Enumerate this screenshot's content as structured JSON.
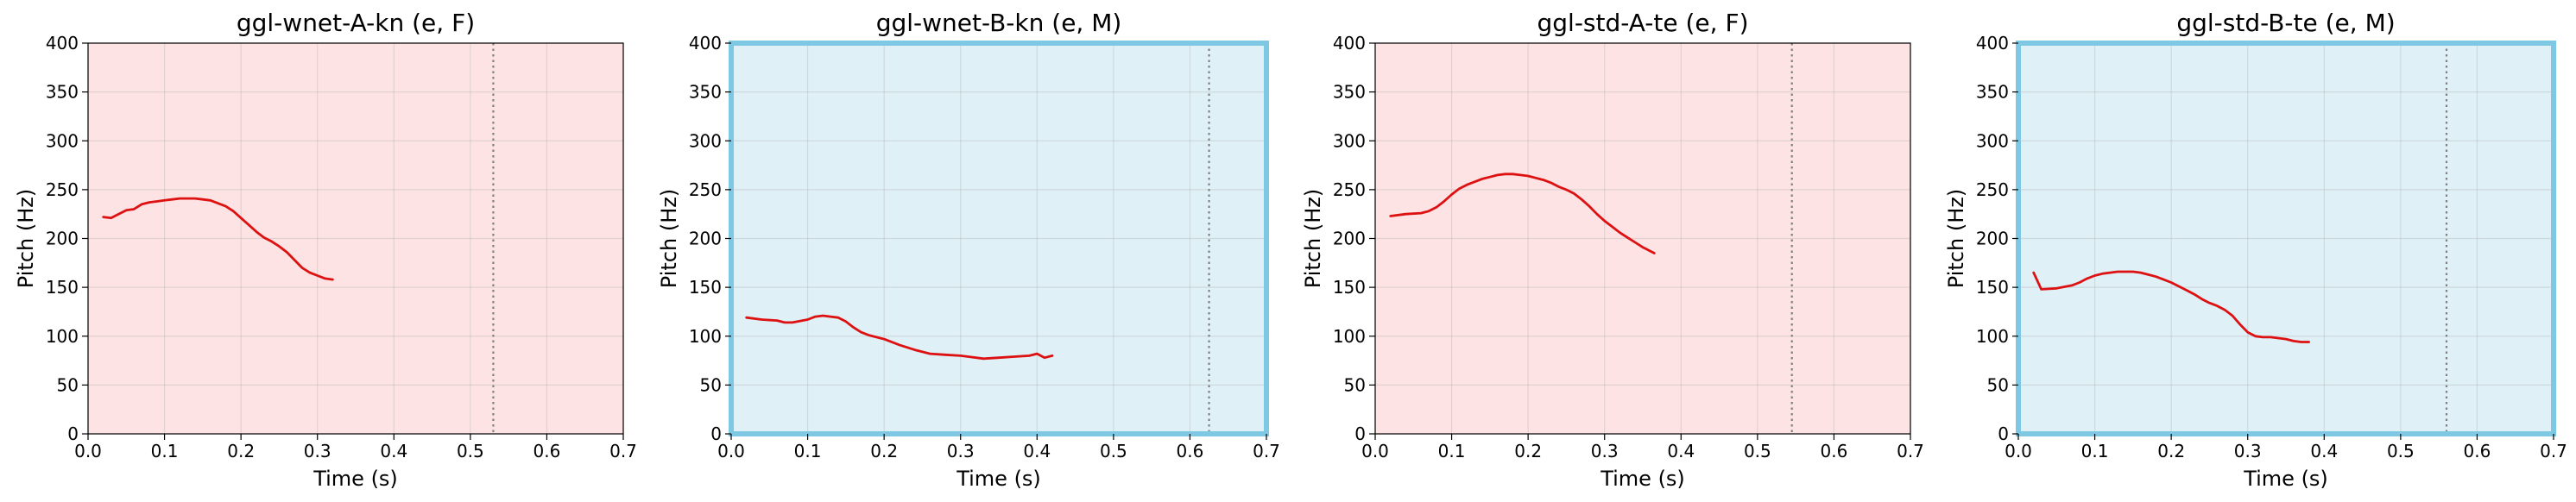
{
  "chart_data": [
    {
      "type": "line",
      "title": "ggl-wnet-A-kn (e, F)",
      "xlabel": "Time (s)",
      "ylabel": "Pitch (Hz)",
      "xlim": [
        0,
        0.7
      ],
      "ylim": [
        0,
        400
      ],
      "xticks": [
        "0.0",
        "0.1",
        "0.2",
        "0.3",
        "0.4",
        "0.5",
        "0.6",
        "0.7"
      ],
      "yticks": [
        "0",
        "50",
        "100",
        "150",
        "200",
        "250",
        "300",
        "350",
        "400"
      ],
      "grid": true,
      "background_color": "#fde3e3",
      "highlighted": false,
      "line_color": "#dd1111",
      "vline_x": 0.53,
      "series": [
        {
          "x": [
            0.02,
            0.03,
            0.04,
            0.05,
            0.06,
            0.07,
            0.08,
            0.09,
            0.1,
            0.11,
            0.12,
            0.13,
            0.14,
            0.15,
            0.16,
            0.17,
            0.18,
            0.19,
            0.2,
            0.21,
            0.22,
            0.23,
            0.24,
            0.25,
            0.26,
            0.27,
            0.28,
            0.29,
            0.3,
            0.31,
            0.32
          ],
          "y": [
            222,
            221,
            225,
            229,
            230,
            235,
            237,
            238,
            239,
            240,
            241,
            241,
            241,
            240,
            239,
            236,
            233,
            228,
            221,
            214,
            207,
            201,
            197,
            192,
            186,
            178,
            170,
            165,
            162,
            159,
            158
          ]
        }
      ]
    },
    {
      "type": "line",
      "title": "ggl-wnet-B-kn (e, M)",
      "xlabel": "Time (s)",
      "ylabel": "Pitch (Hz)",
      "xlim": [
        0,
        0.7
      ],
      "ylim": [
        0,
        400
      ],
      "xticks": [
        "0.0",
        "0.1",
        "0.2",
        "0.3",
        "0.4",
        "0.5",
        "0.6",
        "0.7"
      ],
      "yticks": [
        "0",
        "50",
        "100",
        "150",
        "200",
        "250",
        "300",
        "350",
        "400"
      ],
      "grid": true,
      "background_color": "#dff0f7",
      "highlighted": true,
      "frame_color": "#7ec8e3",
      "line_color": "#dd1111",
      "vline_x": 0.625,
      "series": [
        {
          "x": [
            0.02,
            0.04,
            0.06,
            0.07,
            0.08,
            0.1,
            0.11,
            0.12,
            0.13,
            0.14,
            0.15,
            0.16,
            0.17,
            0.18,
            0.2,
            0.22,
            0.24,
            0.26,
            0.28,
            0.3,
            0.31,
            0.33,
            0.35,
            0.37,
            0.39,
            0.4,
            0.41,
            0.42
          ],
          "y": [
            119,
            117,
            116,
            114,
            114,
            117,
            120,
            121,
            120,
            119,
            115,
            109,
            104,
            101,
            97,
            91,
            86,
            82,
            81,
            80,
            79,
            77,
            78,
            79,
            80,
            82,
            78,
            80
          ]
        }
      ]
    },
    {
      "type": "line",
      "title": "ggl-std-A-te (e, F)",
      "xlabel": "Time (s)",
      "ylabel": "Pitch (Hz)",
      "xlim": [
        0,
        0.7
      ],
      "ylim": [
        0,
        400
      ],
      "xticks": [
        "0.0",
        "0.1",
        "0.2",
        "0.3",
        "0.4",
        "0.5",
        "0.6",
        "0.7"
      ],
      "yticks": [
        "0",
        "50",
        "100",
        "150",
        "200",
        "250",
        "300",
        "350",
        "400"
      ],
      "grid": true,
      "background_color": "#fde3e3",
      "highlighted": false,
      "line_color": "#dd1111",
      "vline_x": 0.545,
      "series": [
        {
          "x": [
            0.02,
            0.04,
            0.06,
            0.07,
            0.08,
            0.09,
            0.1,
            0.11,
            0.12,
            0.13,
            0.14,
            0.15,
            0.16,
            0.17,
            0.18,
            0.19,
            0.2,
            0.21,
            0.22,
            0.23,
            0.24,
            0.25,
            0.26,
            0.27,
            0.28,
            0.29,
            0.3,
            0.31,
            0.32,
            0.33,
            0.34,
            0.35,
            0.36,
            0.365
          ],
          "y": [
            223,
            225,
            226,
            228,
            232,
            238,
            245,
            251,
            255,
            258,
            261,
            263,
            265,
            266,
            266,
            265,
            264,
            262,
            260,
            257,
            253,
            250,
            246,
            240,
            233,
            225,
            218,
            212,
            206,
            201,
            196,
            191,
            187,
            185
          ]
        }
      ]
    },
    {
      "type": "line",
      "title": "ggl-std-B-te (e, M)",
      "xlabel": "Time (s)",
      "ylabel": "Pitch (Hz)",
      "xlim": [
        0,
        0.7
      ],
      "ylim": [
        0,
        400
      ],
      "xticks": [
        "0.0",
        "0.1",
        "0.2",
        "0.3",
        "0.4",
        "0.5",
        "0.6",
        "0.7"
      ],
      "yticks": [
        "0",
        "50",
        "100",
        "150",
        "200",
        "250",
        "300",
        "350",
        "400"
      ],
      "grid": true,
      "background_color": "#dff0f7",
      "highlighted": true,
      "frame_color": "#7ec8e3",
      "line_color": "#dd1111",
      "vline_x": 0.56,
      "series": [
        {
          "x": [
            0.02,
            0.03,
            0.05,
            0.07,
            0.08,
            0.09,
            0.1,
            0.11,
            0.12,
            0.13,
            0.14,
            0.15,
            0.16,
            0.17,
            0.18,
            0.19,
            0.2,
            0.21,
            0.22,
            0.23,
            0.24,
            0.25,
            0.26,
            0.27,
            0.28,
            0.29,
            0.3,
            0.31,
            0.32,
            0.33,
            0.34,
            0.35,
            0.36,
            0.37,
            0.38
          ],
          "y": [
            165,
            148,
            149,
            152,
            155,
            159,
            162,
            164,
            165,
            166,
            166,
            166,
            165,
            163,
            161,
            158,
            155,
            151,
            147,
            143,
            138,
            134,
            131,
            127,
            121,
            112,
            104,
            100,
            99,
            99,
            98,
            97,
            95,
            94,
            94
          ]
        }
      ]
    }
  ]
}
